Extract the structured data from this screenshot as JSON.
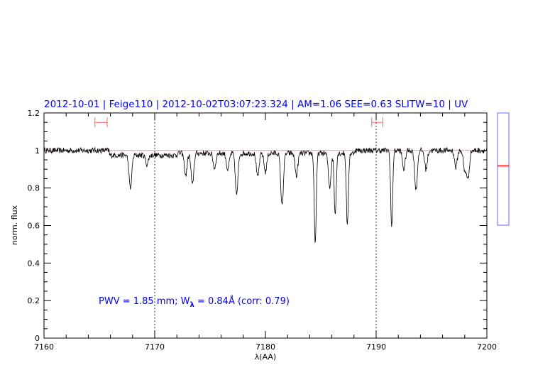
{
  "chart_data": {
    "type": "line",
    "title": "2012-10-01 | Feige110 | 2012-10-02T03:07:23.324 | AM=1.06 SEE=0.63 SLITW=10 | UV",
    "xlabel": "λ(AA)",
    "ylabel": "norm. flux",
    "xlim": [
      7160,
      7200
    ],
    "ylim": [
      0,
      1.2
    ],
    "x_ticks": [
      "7160",
      "7170",
      "7180",
      "7190",
      "7200"
    ],
    "y_ticks": [
      "0",
      "0.2",
      "0.4",
      "0.6",
      "0.8",
      "1",
      "1.2"
    ],
    "grid": false,
    "continuum_level": 1.0,
    "reference_lines_x": [
      7170,
      7190
    ],
    "markers": [
      {
        "x_range": [
          7164.6,
          7165.7
        ],
        "y": 1.15
      },
      {
        "x_range": [
          7189.6,
          7190.6
        ],
        "y": 1.15
      }
    ],
    "series": [
      {
        "name": "normalized spectrum",
        "color": "#000000",
        "absorption_lines": [
          {
            "x": 7167.8,
            "min": 0.82
          },
          {
            "x": 7169.3,
            "min": 0.95
          },
          {
            "x": 7172.8,
            "min": 0.88
          },
          {
            "x": 7173.4,
            "min": 0.83
          },
          {
            "x": 7175.4,
            "min": 0.92
          },
          {
            "x": 7176.6,
            "min": 0.91
          },
          {
            "x": 7177.4,
            "min": 0.78
          },
          {
            "x": 7179.3,
            "min": 0.87
          },
          {
            "x": 7180.0,
            "min": 0.9
          },
          {
            "x": 7181.5,
            "min": 0.72
          },
          {
            "x": 7182.8,
            "min": 0.88
          },
          {
            "x": 7184.5,
            "min": 0.52
          },
          {
            "x": 7185.8,
            "min": 0.82
          },
          {
            "x": 7186.3,
            "min": 0.67
          },
          {
            "x": 7187.4,
            "min": 0.61
          },
          {
            "x": 7191.4,
            "min": 0.59
          },
          {
            "x": 7192.5,
            "min": 0.9
          },
          {
            "x": 7193.6,
            "min": 0.79
          },
          {
            "x": 7194.5,
            "min": 0.9
          },
          {
            "x": 7197.2,
            "min": 0.91
          },
          {
            "x": 7198.0,
            "min": 0.89
          },
          {
            "x": 7198.3,
            "min": 0.85
          }
        ]
      }
    ],
    "side_panel": {
      "ylim": [
        0.6,
        1.2
      ],
      "markers": [
        0.92,
        0.915
      ]
    },
    "annotation": {
      "pwv_text": "PWV = 1.85 mm; W",
      "sub": "λ",
      "w_text": " = 0.84Å (corr: 0.79)"
    }
  },
  "colors": {
    "title": "#0000ff",
    "marker": "#ff6666",
    "side_box": "#6666ff",
    "continuum": "#ff4444"
  }
}
